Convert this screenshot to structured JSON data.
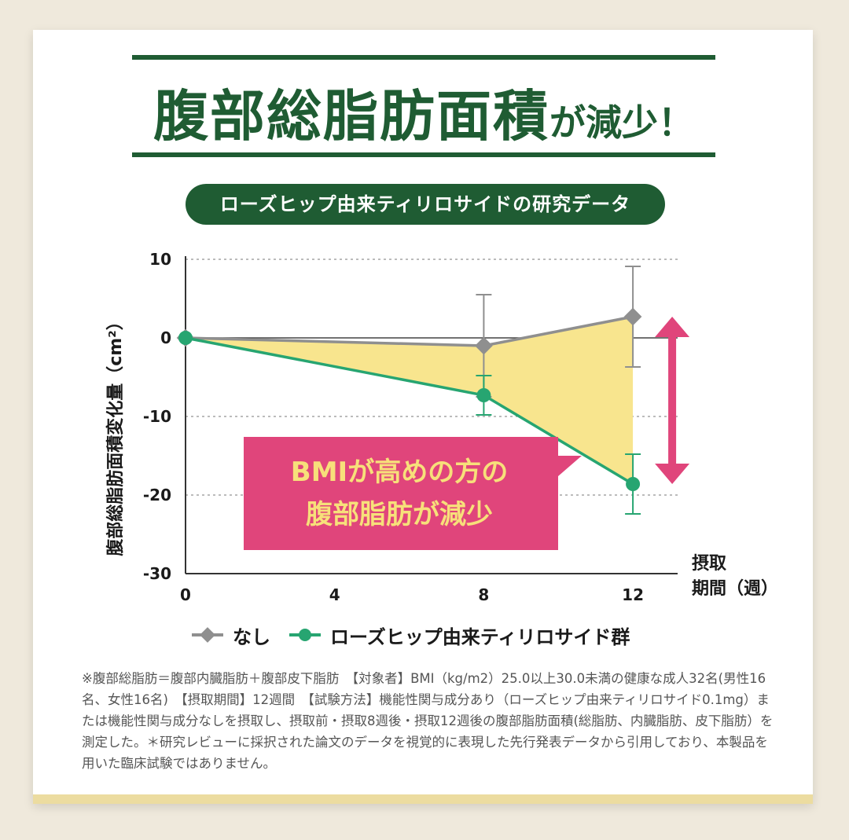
{
  "header": {
    "title_main": "腹部総脂肪面積",
    "title_suffix": "が減少！",
    "subtitle": "ローズヒップ由来ティリロサイドの研究データ"
  },
  "colors": {
    "brand_green": "#1f5c33",
    "series_none": "#8f8f8f",
    "series_tiliroside": "#27a571",
    "fill_yellow": "#f8e58e",
    "callout_pink": "#e0457b",
    "callout_text": "#f7e07a"
  },
  "chart_data": {
    "type": "line",
    "ylabel": "腹部総脂肪面積変化量（cm²）",
    "xlabel_line1": "摂取",
    "xlabel_line2": "期間（週）",
    "x_ticks": [
      "0",
      "4",
      "8",
      "12"
    ],
    "y_ticks": [
      "10",
      "0",
      "-10",
      "-20",
      "-30"
    ],
    "xlim": [
      0,
      13.2
    ],
    "ylim": [
      -30,
      10
    ],
    "grid": "dashed horizontal",
    "series": [
      {
        "name": "なし",
        "marker": "diamond",
        "x": [
          0,
          8,
          12
        ],
        "y": [
          0,
          -1.0,
          2.7
        ],
        "error": [
          0,
          6.5,
          6.4
        ]
      },
      {
        "name": "ローズヒップ由来ティリロサイド群",
        "marker": "circle",
        "x": [
          0,
          8,
          12
        ],
        "y": [
          0,
          -7.3,
          -18.6
        ],
        "error": [
          0,
          2.5,
          3.8
        ]
      }
    ],
    "shaded_difference_between_series": true,
    "callout": {
      "line1": "BMIが高めの方の",
      "line2": "腹部脂肪が減少"
    },
    "difference_arrow_at_week": 12
  },
  "footnote": "※腹部総脂肪＝腹部内臓脂肪＋腹部皮下脂肪　【対象者】BMI（kg/m2）25.0以上30.0未満の健康な成人32名(男性16名、女性16名)　【摂取期間】12週間　【試験方法】機能性関与成分あり（ローズヒップ由来ティリロサイド0.1mg）または機能性関与成分なしを摂取し、摂取前・摂取8週後・摂取12週後の腹部脂肪面積(総脂肪、内臓脂肪、皮下脂肪）を測定した。＊研究レビューに採択された論文のデータを視覚的に表現した先行発表データから引用しており、本製品を用いた臨床試験ではありません。"
}
